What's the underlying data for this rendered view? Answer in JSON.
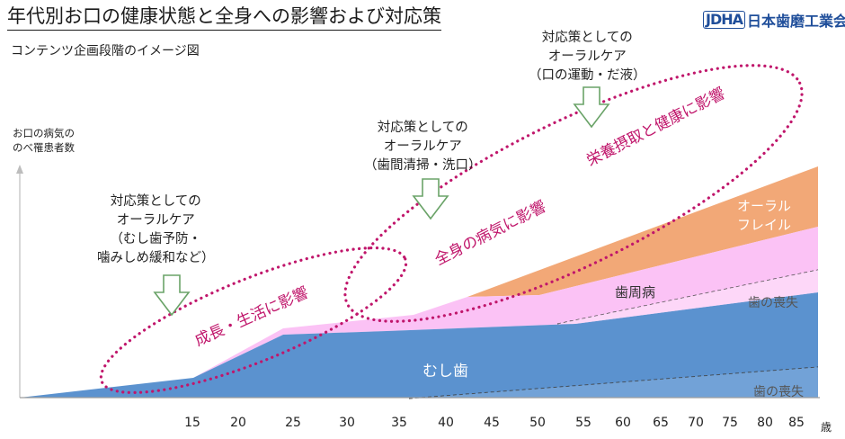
{
  "header": {
    "title": "年代別お口の健康状態と全身への影響および対応策",
    "subtitle": "コンテンツ企画段階のイメージ図",
    "logo_mark": "JDHA",
    "logo_text": "日本歯磨工業会"
  },
  "y_axis_label": [
    "お口の病気の",
    "のべ罹患者数"
  ],
  "x_axis": {
    "ticks": [
      "15",
      "20",
      "25",
      "30",
      "35",
      "40",
      "45",
      "50",
      "55",
      "60",
      "65",
      "70",
      "75",
      "80",
      "85"
    ],
    "unit": "歳"
  },
  "callouts": [
    {
      "lines": [
        "対応策としての",
        "オーラルケア",
        "（むし歯予防・",
        "噛みしめ緩和など）"
      ]
    },
    {
      "lines": [
        "対応策としての",
        "オーラルケア",
        "（歯間清掃・洗口）"
      ]
    },
    {
      "lines": [
        "対応策としての",
        "オーラルケア",
        "（口の運動・だ液）"
      ]
    }
  ],
  "areas": {
    "caries": "むし歯",
    "periodontal": "歯周病",
    "oral_frail": [
      "オーラル",
      "フレイル"
    ],
    "tooth_loss_lower": "歯の喪失",
    "tooth_loss_upper": "歯の喪失"
  },
  "impacts": {
    "growth": "成長・生活に影響",
    "systemic": "全身の病気に影響",
    "nutrition": "栄養摂取と健康に影響"
  },
  "colors": {
    "caries": "#5b92cf",
    "periodontal": "#fbc2f5",
    "oral_frail": "#f2a877",
    "impact_ring": "#c0166b",
    "impact_text": "#c0166b",
    "arrow_fill": "#ffffff",
    "arrow_stroke": "#6aa368",
    "logo": "#1f4e9a"
  },
  "icons": {
    "logo": "jdha-logo-icon",
    "arrow": "down-arrow-icon"
  }
}
